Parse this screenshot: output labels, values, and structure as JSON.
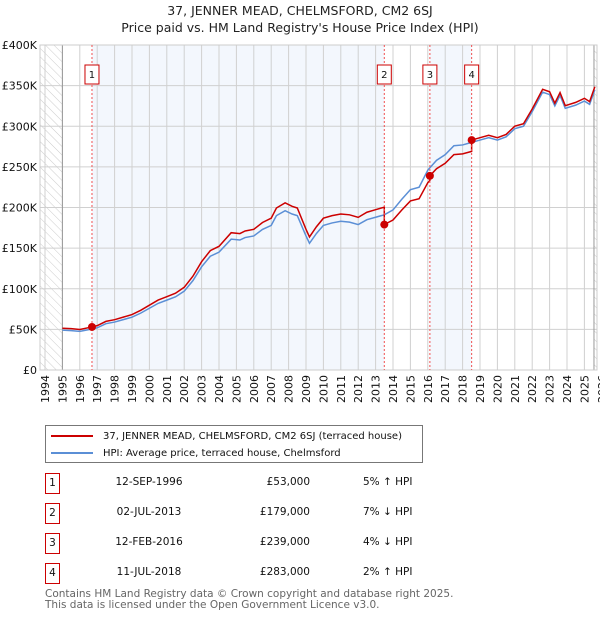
{
  "chart_data": {
    "type": "line",
    "title": "37, JENNER MEAD, CHELMSFORD, CM2 6SJ",
    "subtitle": "Price paid vs. HM Land Registry's House Price Index (HPI)",
    "ylim": [
      0,
      400000
    ],
    "xlim": [
      1994,
      2026
    ],
    "yticks": [
      {
        "v": 0,
        "label": "£0"
      },
      {
        "v": 50000,
        "label": "£50K"
      },
      {
        "v": 100000,
        "label": "£100K"
      },
      {
        "v": 150000,
        "label": "£150K"
      },
      {
        "v": 200000,
        "label": "£200K"
      },
      {
        "v": 250000,
        "label": "£250K"
      },
      {
        "v": 300000,
        "label": "£300K"
      },
      {
        "v": 350000,
        "label": "£350K"
      },
      {
        "v": 400000,
        "label": "£400K"
      }
    ],
    "xticks": [
      "1994",
      "1995",
      "1996",
      "1997",
      "1998",
      "1999",
      "2000",
      "2001",
      "2002",
      "2003",
      "2004",
      "2005",
      "2006",
      "2007",
      "2008",
      "2009",
      "2010",
      "2011",
      "2012",
      "2013",
      "2014",
      "2015",
      "2016",
      "2017",
      "2018",
      "2019",
      "2020",
      "2021",
      "2022",
      "2023",
      "2024",
      "2025",
      "2026"
    ],
    "series": [
      {
        "name": "37, JENNER MEAD, CHELMSFORD, CM2 6SJ (terraced house)",
        "color": "#cc0000",
        "derived_from_hpi_and_sales": true
      },
      {
        "name": "HPI: Average price, terraced house, Chelmsford",
        "color": "#5b8fd6",
        "points": [
          [
            1995,
            49
          ],
          [
            1995.5,
            48.5
          ],
          [
            1996,
            47.5
          ],
          [
            1996.7,
            50.5
          ],
          [
            1997,
            52
          ],
          [
            1997.5,
            57
          ],
          [
            1998,
            59
          ],
          [
            1998.5,
            62
          ],
          [
            1999,
            65
          ],
          [
            1999.5,
            70
          ],
          [
            2000,
            76
          ],
          [
            2000.5,
            82
          ],
          [
            2001,
            86
          ],
          [
            2001.5,
            90
          ],
          [
            2002,
            97
          ],
          [
            2002.5,
            110
          ],
          [
            2003,
            127
          ],
          [
            2003.5,
            140
          ],
          [
            2004,
            145
          ],
          [
            2004.7,
            161
          ],
          [
            2005.2,
            160
          ],
          [
            2005.5,
            163
          ],
          [
            2006,
            165
          ],
          [
            2006.5,
            173
          ],
          [
            2007,
            178
          ],
          [
            2007.3,
            190
          ],
          [
            2007.8,
            196
          ],
          [
            2008.2,
            192
          ],
          [
            2008.5,
            190
          ],
          [
            2009,
            165
          ],
          [
            2009.2,
            156
          ],
          [
            2009.6,
            168
          ],
          [
            2010,
            178
          ],
          [
            2010.5,
            181
          ],
          [
            2011,
            183
          ],
          [
            2011.5,
            182
          ],
          [
            2012,
            179
          ],
          [
            2012.5,
            185
          ],
          [
            2013,
            188
          ],
          [
            2013.5,
            191
          ],
          [
            2014,
            197
          ],
          [
            2014.5,
            210
          ],
          [
            2015,
            222
          ],
          [
            2015.5,
            225
          ],
          [
            2016,
            246
          ],
          [
            2016.5,
            258
          ],
          [
            2017,
            265
          ],
          [
            2017.5,
            276
          ],
          [
            2018,
            277
          ],
          [
            2018.5,
            280
          ],
          [
            2019,
            283
          ],
          [
            2019.5,
            286
          ],
          [
            2020,
            283
          ],
          [
            2020.5,
            287
          ],
          [
            2021,
            297
          ],
          [
            2021.5,
            300
          ],
          [
            2022,
            318
          ],
          [
            2022.6,
            342
          ],
          [
            2023,
            339
          ],
          [
            2023.3,
            325
          ],
          [
            2023.6,
            338
          ],
          [
            2023.9,
            322
          ],
          [
            2024.5,
            326
          ],
          [
            2025,
            331
          ],
          [
            2025.3,
            327
          ],
          [
            2025.6,
            345
          ]
        ]
      }
    ],
    "sales": [
      {
        "n": "1",
        "x": 1996.7,
        "date": "12-SEP-1996",
        "price_value": 53000,
        "price": "£53,000",
        "hpi": "5% ↑ HPI"
      },
      {
        "n": "2",
        "x": 2013.5,
        "date": "02-JUL-2013",
        "price_value": 179000,
        "price": "£179,000",
        "hpi": "7% ↓ HPI"
      },
      {
        "n": "3",
        "x": 2016.12,
        "date": "12-FEB-2016",
        "price_value": 239000,
        "price": "£239,000",
        "hpi": "4% ↓ HPI"
      },
      {
        "n": "4",
        "x": 2018.52,
        "date": "11-JUL-2018",
        "price_value": 283000,
        "price": "£283,000",
        "hpi": "2% ↑ HPI"
      }
    ],
    "legend": "bottom"
  },
  "footer": {
    "line1": "Contains HM Land Registry data © Crown copyright and database right 2025.",
    "line2": "This data is licensed under the Open Government Licence v3.0."
  }
}
